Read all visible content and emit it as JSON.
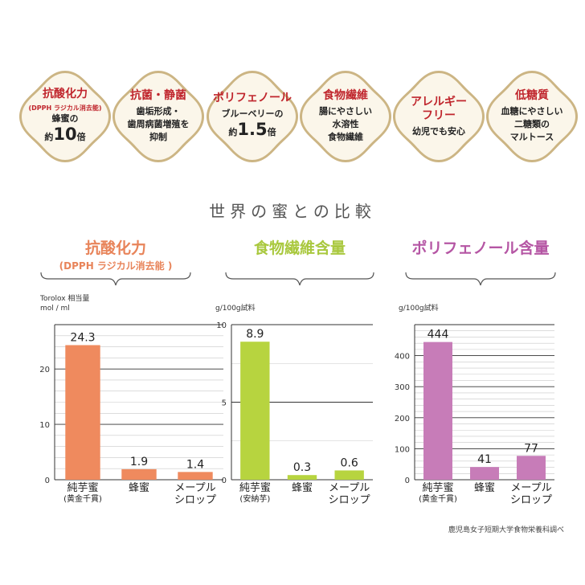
{
  "badges": [
    {
      "title": "抗酸化力",
      "sub": "(DPPH ラジカル消去能)",
      "lines": [
        "蜂蜜の"
      ],
      "big_pre": "約",
      "big_num": "10",
      "big_post": "倍"
    },
    {
      "title": "抗菌・静菌",
      "sub": "",
      "lines": [
        "歯垢形成・",
        "歯周病菌増殖を",
        "抑制"
      ],
      "big_pre": "",
      "big_num": "",
      "big_post": ""
    },
    {
      "title": "ポリフェノール",
      "sub": "",
      "lines": [
        "ブルーベリーの"
      ],
      "big_pre": "約",
      "big_num": "1.5",
      "big_post": "倍"
    },
    {
      "title": "食物繊維",
      "sub": "",
      "lines": [
        "腸にやさしい",
        "水溶性",
        "食物繊維"
      ],
      "big_pre": "",
      "big_num": "",
      "big_post": ""
    },
    {
      "title": "アレルギー\nフリー",
      "sub": "",
      "lines": [
        "幼児でも安心"
      ],
      "big_pre": "",
      "big_num": "",
      "big_post": ""
    },
    {
      "title": "低糖質",
      "sub": "",
      "lines": [
        "血糖にやさしい",
        "二糖類の",
        "マルトース"
      ],
      "big_pre": "",
      "big_num": "",
      "big_post": ""
    }
  ],
  "badge_colors": {
    "fill": "#fbf6ea",
    "ring": "#ccb584"
  },
  "main_title": "世界の蜜との比較",
  "footer": "鹿児島女子短期大学食物栄養科調べ",
  "chart_data": [
    {
      "type": "bar",
      "title": "抗酸化力",
      "subtitle": "(DPPH ラジカル消去能 )",
      "title_color": "#e8845a",
      "bar_color": "#ef8a5e",
      "unit": "Torolox 相当量\nmol / ml",
      "categories": [
        "純芋蜜",
        "蜂蜜",
        "メープル\nシロップ"
      ],
      "category_notes": [
        "(黄金千貫)",
        "",
        ""
      ],
      "values": [
        24.3,
        1.9,
        1.4
      ],
      "value_labels": [
        "24.3",
        "1.9",
        "1.4"
      ],
      "ylim": [
        0,
        28
      ],
      "yticks": [
        0,
        10,
        20
      ],
      "grid_step": 2
    },
    {
      "type": "bar",
      "title": "食物繊維含量",
      "subtitle": "",
      "title_color": "#a9c83e",
      "bar_color": "#b7d43f",
      "unit": "g/100g試料",
      "categories": [
        "純芋蜜",
        "蜂蜜",
        "メープル\nシロップ"
      ],
      "category_notes": [
        "(安納芋)",
        "",
        ""
      ],
      "values": [
        8.9,
        0.3,
        0.6
      ],
      "value_labels": [
        "8.9",
        "0.3",
        "0.6"
      ],
      "ylim": [
        0,
        10
      ],
      "yticks": [
        0,
        5,
        10
      ],
      "grid_step": 2.5
    },
    {
      "type": "bar",
      "title": "ポリフェノール含量",
      "subtitle": "",
      "title_color": "#b556a4",
      "bar_color": "#c77cb8",
      "unit": "g/100g試料",
      "categories": [
        "純芋蜜",
        "蜂蜜",
        "メープル\nシロップ"
      ],
      "category_notes": [
        "(黄金千貫)",
        "",
        ""
      ],
      "values": [
        444,
        41,
        77
      ],
      "value_labels": [
        "444",
        "41",
        "77"
      ],
      "ylim": [
        0,
        500
      ],
      "yticks": [
        0,
        100,
        200,
        300,
        400
      ],
      "grid_step": 20
    }
  ]
}
